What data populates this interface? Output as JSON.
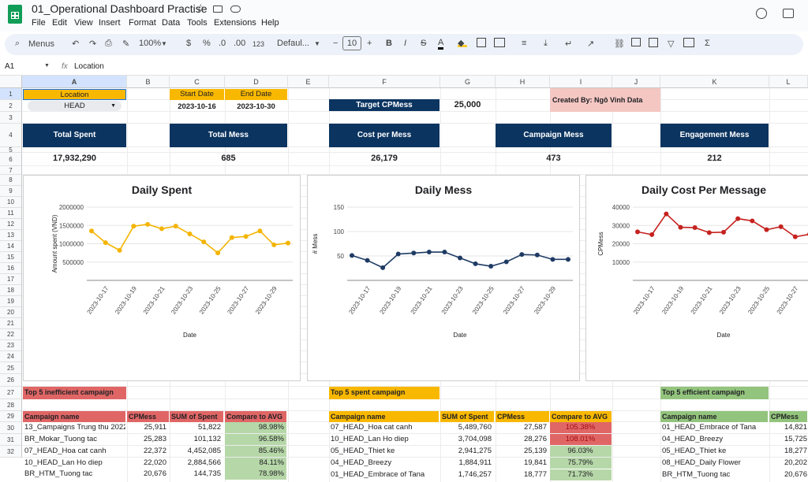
{
  "doc": {
    "title": "01_Operational Dashboard Practise"
  },
  "menu": [
    "File",
    "Edit",
    "View",
    "Insert",
    "Format",
    "Data",
    "Tools",
    "Extensions",
    "Help"
  ],
  "toolbar": {
    "search": "Menus",
    "zoom": "100%",
    "currency": "$",
    "percent": "%",
    "dec_dec": ".0",
    "dec_inc": ".00",
    "format123": "123",
    "font": "Defaul...",
    "font_size": "10",
    "minus": "−",
    "plus": "+",
    "bold": "B",
    "italic": "I",
    "strike": "S",
    "textcolor": "A",
    "sigma": "Σ"
  },
  "formula": {
    "ref": "A1",
    "fx": "fx",
    "value": "Location"
  },
  "columns": [
    "A",
    "B",
    "C",
    "D",
    "E",
    "F",
    "G",
    "H",
    "I",
    "J",
    "K",
    "L"
  ],
  "rows": [
    "1",
    "2",
    "3",
    "4",
    "5",
    "6",
    "7",
    "8",
    "9",
    "10",
    "11",
    "12",
    "13",
    "14",
    "15",
    "16",
    "17",
    "18",
    "19",
    "20",
    "21",
    "22",
    "23",
    "24",
    "25",
    "26",
    "27",
    "28",
    "29",
    "30",
    "31",
    "32"
  ],
  "cells": {
    "location_label": "Location",
    "location_value": "HEAD",
    "start_label": "Start Date",
    "end_label": "End Date",
    "start_value": "2023-10-16",
    "end_value": "2023-10-30",
    "target_label": "Target CPMess",
    "target_value": "25,000",
    "created_by": "Created By: Ngô Vinh Data",
    "kpi": [
      {
        "label": "Total Spent",
        "value": "17,932,290"
      },
      {
        "label": "Total Mess",
        "value": "685"
      },
      {
        "label": "Cost per Mess",
        "value": "26,179"
      },
      {
        "label": "Campaign Mess",
        "value": "473"
      },
      {
        "label": "Engagement Mess",
        "value": "212"
      }
    ]
  },
  "chart_data": [
    {
      "type": "line",
      "title": "Daily Spent",
      "xlabel": "Date",
      "ylabel": "Amount spent (VND)",
      "color": "#f4b400",
      "x": [
        "2023-10-16",
        "2023-10-17",
        "2023-10-18",
        "2023-10-19",
        "2023-10-20",
        "2023-10-21",
        "2023-10-22",
        "2023-10-23",
        "2023-10-24",
        "2023-10-25",
        "2023-10-26",
        "2023-10-27",
        "2023-10-28",
        "2023-10-29",
        "2023-10-30"
      ],
      "xticks": [
        "2023-10-17",
        "2023-10-19",
        "2023-10-21",
        "2023-10-23",
        "2023-10-25",
        "2023-10-27",
        "2023-10-29"
      ],
      "values": [
        1350000,
        1030000,
        820000,
        1480000,
        1530000,
        1410000,
        1480000,
        1270000,
        1050000,
        750000,
        1170000,
        1200000,
        1350000,
        970000,
        1020000
      ],
      "ylim": [
        0,
        2000000
      ],
      "yticks": [
        "500000",
        "1000000",
        "1500000",
        "2000000"
      ],
      "ytick_vals": [
        500000,
        1000000,
        1500000,
        2000000
      ]
    },
    {
      "type": "line",
      "title": "Daily Mess",
      "xlabel": "Date",
      "ylabel": "# Mess",
      "color": "#1f3b64",
      "x": [
        "2023-10-16",
        "2023-10-17",
        "2023-10-18",
        "2023-10-19",
        "2023-10-20",
        "2023-10-21",
        "2023-10-22",
        "2023-10-23",
        "2023-10-24",
        "2023-10-25",
        "2023-10-26",
        "2023-10-27",
        "2023-10-28",
        "2023-10-29",
        "2023-10-30"
      ],
      "xticks": [
        "2023-10-17",
        "2023-10-19",
        "2023-10-21",
        "2023-10-23",
        "2023-10-25",
        "2023-10-27",
        "2023-10-29"
      ],
      "values": [
        51,
        41,
        26,
        54,
        56,
        58,
        58,
        46,
        34,
        29,
        38,
        53,
        52,
        43,
        43
      ],
      "ylim": [
        0,
        150
      ],
      "yticks": [
        "50",
        "100",
        "150"
      ],
      "ytick_vals": [
        50,
        100,
        150
      ]
    },
    {
      "type": "line",
      "title": "Daily Cost Per Message",
      "xlabel": "Date",
      "ylabel": "CPMess",
      "color": "#c5221f",
      "x": [
        "2023-10-16",
        "2023-10-17",
        "2023-10-18",
        "2023-10-19",
        "2023-10-20",
        "2023-10-21",
        "2023-10-22",
        "2023-10-23",
        "2023-10-24",
        "2023-10-25",
        "2023-10-26",
        "2023-10-27",
        "2023-10-28"
      ],
      "xticks": [
        "2023-10-17",
        "2023-10-19",
        "2023-10-21",
        "2023-10-23",
        "2023-10-25",
        "2023-10-27"
      ],
      "values": [
        26500,
        25000,
        36300,
        29000,
        28800,
        26100,
        26300,
        33700,
        32500,
        27700,
        29300,
        23800,
        25200
      ],
      "ylim": [
        0,
        40000
      ],
      "yticks": [
        "10000",
        "20000",
        "30000",
        "40000"
      ],
      "ytick_vals": [
        10000,
        20000,
        30000,
        40000
      ]
    }
  ],
  "tables": {
    "inefficient": {
      "title": "Top 5 inefficient campaign",
      "headers": [
        "Campaign name",
        "CPMess",
        "SUM of Spent",
        "Compare to AVG"
      ],
      "rows": [
        [
          "13_Campaigns Trung thu 2022",
          "25,911",
          "51,822",
          "98.98%"
        ],
        [
          "BR_Mokar_Tuong tac",
          "25,283",
          "101,132",
          "96.58%"
        ],
        [
          "07_HEAD_Hoa cat canh",
          "22,372",
          "4,452,085",
          "85.46%"
        ],
        [
          "10_HEAD_Lan Ho diep",
          "22,020",
          "2,884,566",
          "84.11%"
        ],
        [
          "BR_HTM_Tuong tac",
          "20,676",
          "144,735",
          "78.98%"
        ]
      ]
    },
    "spent": {
      "title": "Top 5 spent campaign",
      "headers": [
        "Campaign name",
        "SUM of Spent",
        "CPMess",
        "Compare to AVG"
      ],
      "rows": [
        [
          "07_HEAD_Hoa cat canh",
          "5,489,760",
          "27,587",
          "105.38%"
        ],
        [
          "10_HEAD_Lan Ho diep",
          "3,704,098",
          "28,276",
          "108.01%"
        ],
        [
          "05_HEAD_Thiet ke",
          "2,941,275",
          "25,139",
          "96.03%"
        ],
        [
          "04_HEAD_Breezy",
          "1,884,911",
          "19,841",
          "75.79%"
        ],
        [
          "01_HEAD_Embrace of Tana",
          "1,746,257",
          "18,777",
          "71.73%"
        ]
      ],
      "compare_colors": [
        "#e06666",
        "#e06666",
        "#b6d7a8",
        "#b6d7a8",
        "#b6d7a8"
      ]
    },
    "efficient": {
      "title": "Top 5 efficient campaign",
      "headers": [
        "Campaign name",
        "CPMess"
      ],
      "rows": [
        [
          "01_HEAD_Embrace of Tana",
          "14,821"
        ],
        [
          "04_HEAD_Breezy",
          "15,725"
        ],
        [
          "05_HEAD_Thiet ke",
          "18,277"
        ],
        [
          "08_HEAD_Daily Flower",
          "20,202"
        ],
        [
          "BR_HTM_Tuong tac",
          "20,676"
        ]
      ]
    }
  }
}
